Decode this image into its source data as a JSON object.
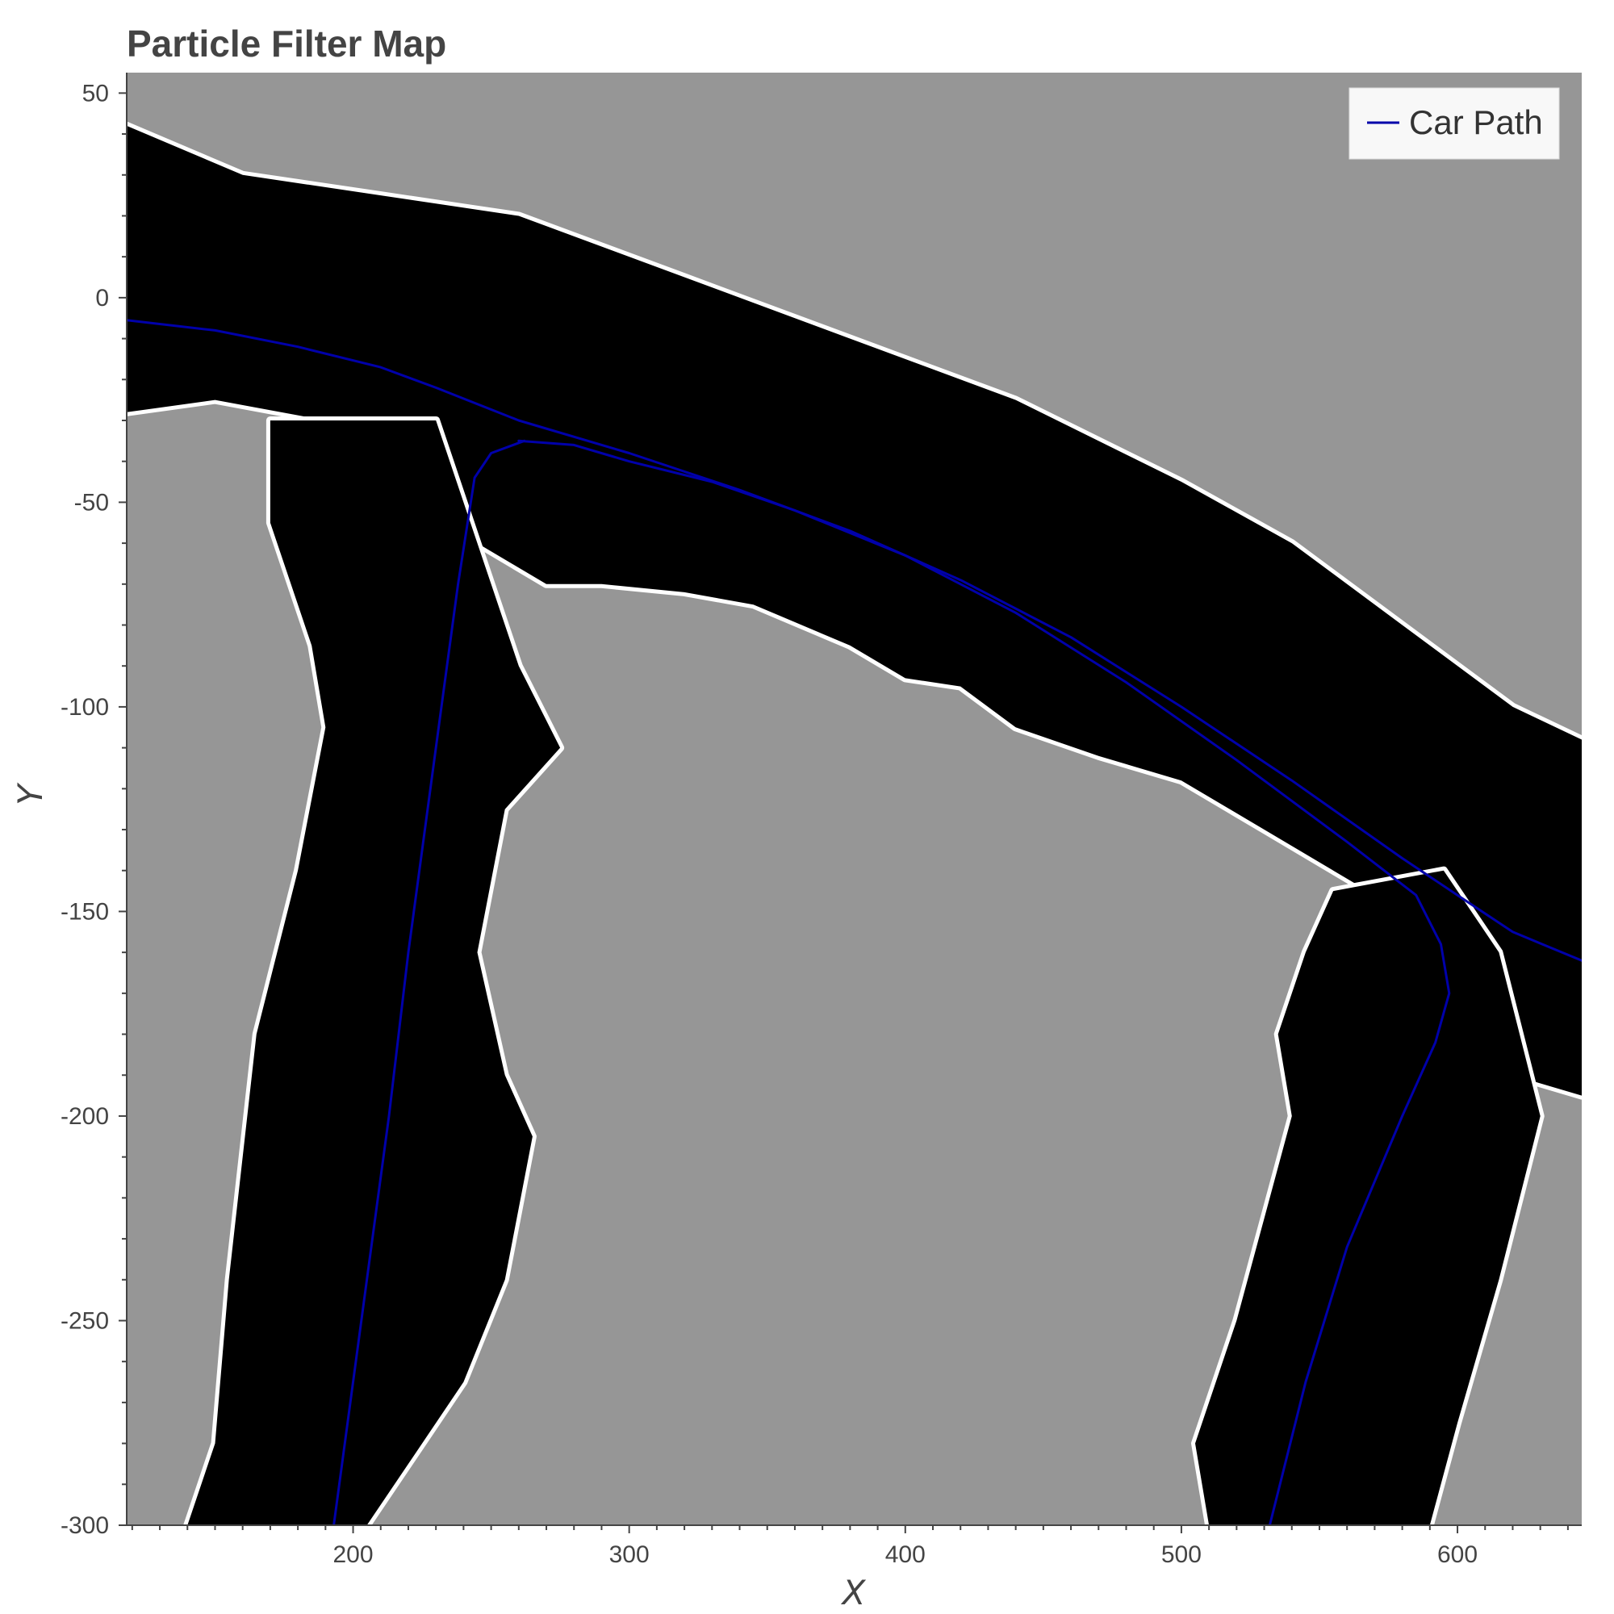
{
  "chart_data": {
    "type": "line",
    "title": "Particle Filter Map",
    "xlabel": "X",
    "ylabel": "Y",
    "xlim": [
      118,
      645
    ],
    "ylim": [
      -300,
      55
    ],
    "x_ticks": [
      200,
      300,
      400,
      500,
      600
    ],
    "x_tick_labels": [
      "200",
      "300",
      "400",
      "500",
      "600"
    ],
    "y_ticks": [
      50,
      0,
      -50,
      -100,
      -150,
      -200,
      -250,
      -300
    ],
    "y_tick_labels": [
      "50",
      "0",
      "-50",
      "-100",
      "-150",
      "-200",
      "-250",
      "-300"
    ],
    "grid": false,
    "legend": {
      "position": "top-right",
      "entries": [
        "Car Path"
      ]
    },
    "background": {
      "type": "occupancy-grid",
      "unknown_color": "#969696",
      "free_color": "#000000",
      "occupied_color": "#ffffff",
      "free_corridors": [
        {
          "name": "upper-road",
          "polygon": [
            [
              118,
              42
            ],
            [
              160,
              30
            ],
            [
              210,
              25
            ],
            [
              260,
              20
            ],
            [
              320,
              5
            ],
            [
              380,
              -10
            ],
            [
              440,
              -25
            ],
            [
              500,
              -45
            ],
            [
              540,
              -60
            ],
            [
              580,
              -80
            ],
            [
              620,
              -100
            ],
            [
              645,
              -108
            ],
            [
              645,
              -195
            ],
            [
              620,
              -190
            ],
            [
              600,
              -170
            ],
            [
              580,
              -150
            ],
            [
              555,
              -140
            ],
            [
              530,
              -130
            ],
            [
              500,
              -118
            ],
            [
              470,
              -112
            ],
            [
              440,
              -105
            ],
            [
              420,
              -95
            ],
            [
              400,
              -93
            ],
            [
              380,
              -85
            ],
            [
              345,
              -75
            ],
            [
              320,
              -72
            ],
            [
              290,
              -70
            ],
            [
              270,
              -70
            ],
            [
              245,
              -60
            ],
            [
              220,
              -35
            ],
            [
              190,
              -30
            ],
            [
              150,
              -25
            ],
            [
              118,
              -28
            ]
          ]
        },
        {
          "name": "left-branch",
          "polygon": [
            [
              170,
              -30
            ],
            [
              230,
              -30
            ],
            [
              250,
              -70
            ],
            [
              260,
              -90
            ],
            [
              275,
              -110
            ],
            [
              255,
              -125
            ],
            [
              245,
              -160
            ],
            [
              255,
              -190
            ],
            [
              265,
              -205
            ],
            [
              255,
              -240
            ],
            [
              240,
              -265
            ],
            [
              225,
              -280
            ],
            [
              205,
              -300
            ],
            [
              140,
              -300
            ],
            [
              150,
              -280
            ],
            [
              155,
              -240
            ],
            [
              165,
              -180
            ],
            [
              180,
              -140
            ],
            [
              190,
              -105
            ],
            [
              185,
              -85
            ],
            [
              170,
              -55
            ]
          ]
        },
        {
          "name": "right-branch",
          "polygon": [
            [
              555,
              -145
            ],
            [
              595,
              -140
            ],
            [
              615,
              -160
            ],
            [
              630,
              -200
            ],
            [
              615,
              -240
            ],
            [
              600,
              -275
            ],
            [
              590,
              -300
            ],
            [
              510,
              -300
            ],
            [
              505,
              -280
            ],
            [
              520,
              -250
            ],
            [
              530,
              -225
            ],
            [
              540,
              -200
            ],
            [
              535,
              -180
            ],
            [
              545,
              -160
            ]
          ]
        }
      ]
    },
    "series": [
      {
        "name": "Car Path",
        "color": "#0000aa",
        "segments": [
          {
            "x": [
              118,
              150,
              180,
              210,
              230,
              260,
              300,
              340,
              380,
              420,
              460,
              500,
              540,
              580,
              600,
              620,
              645
            ],
            "y": [
              -5.5,
              -8,
              -12,
              -17,
              -22,
              -30,
              -38,
              -47,
              -57,
              -69,
              -83,
              -100,
              -118,
              -137,
              -146,
              -155,
              -162
            ]
          },
          {
            "x": [
              260,
              280,
              300,
              330,
              360,
              400,
              440,
              480,
              520,
              560,
              585,
              594,
              597,
              592,
              580,
              560,
              545,
              532
            ],
            "y": [
              -35,
              -36,
              -40,
              -45,
              -52,
              -63,
              -77,
              -94,
              -113,
              -133,
              -146,
              -158,
              -170,
              -182,
              -200,
              -232,
              -265,
              -300
            ]
          },
          {
            "x": [
              262,
              250,
              244,
              238,
              232,
              226,
              220,
              213,
              205,
              198,
              193
            ],
            "y": [
              -35,
              -38,
              -44,
              -70,
              -100,
              -130,
              -160,
              -200,
              -240,
              -275,
              -300
            ]
          }
        ]
      }
    ]
  }
}
